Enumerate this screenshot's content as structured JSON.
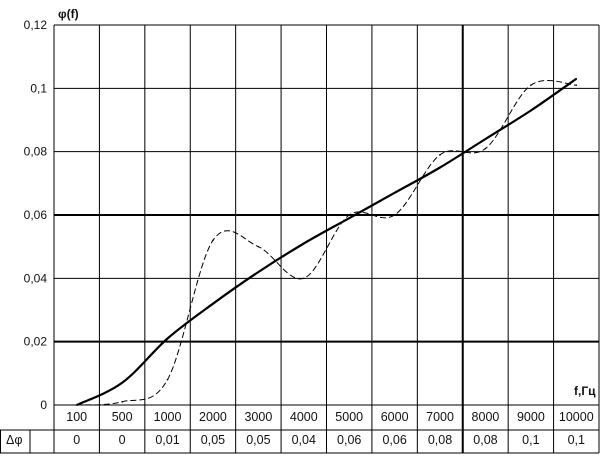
{
  "chart_data": {
    "type": "line",
    "ylabel": "φ(f)",
    "xlabel": "f,Гц",
    "ylim": [
      0,
      0.12
    ],
    "yticks": [
      "0",
      "0,02",
      "0,04",
      "0,06",
      "0,08",
      "0,1",
      "0,12"
    ],
    "categories": [
      "100",
      "500",
      "1000",
      "2000",
      "3000",
      "4000",
      "5000",
      "6000",
      "7000",
      "8000",
      "9000",
      "10000"
    ],
    "table": {
      "row_label": "Δφ",
      "values": [
        "0",
        "0",
        "0,01",
        "0,05",
        "0,05",
        "0,04",
        "0,06",
        "0,06",
        "0,08",
        "0,08",
        "0,1",
        "0,1"
      ]
    },
    "grid": true,
    "series": [
      {
        "style": "solid",
        "values": [
          0,
          0.007,
          0.021,
          0.032,
          0.042,
          0.051,
          0.059,
          0.067,
          0.075,
          0.084,
          0.093,
          0.103
        ]
      },
      {
        "style": "dashed",
        "values": [
          0,
          0.001,
          0.008,
          0.052,
          0.05,
          0.04,
          0.06,
          0.06,
          0.079,
          0.081,
          0.101,
          0.101
        ]
      }
    ]
  }
}
